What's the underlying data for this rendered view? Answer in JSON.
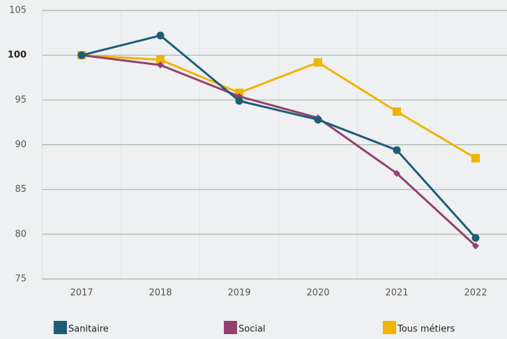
{
  "chart_data": {
    "type": "line",
    "categories": [
      "2017",
      "2018",
      "2019",
      "2020",
      "2021",
      "2022"
    ],
    "series": [
      {
        "name": "Sanitaire",
        "color": "#1e5d78",
        "marker": "circle",
        "values": [
          100,
          102.2,
          94.9,
          92.8,
          89.4,
          79.6
        ]
      },
      {
        "name": "Social",
        "color": "#94406e",
        "marker": "diamond",
        "values": [
          100,
          98.9,
          95.4,
          93.0,
          86.8,
          78.7
        ]
      },
      {
        "name": "Tous métiers",
        "color": "#f0b400",
        "marker": "square",
        "values": [
          100,
          99.5,
          95.8,
          99.2,
          93.7,
          88.5
        ]
      }
    ],
    "ylim": [
      75,
      105
    ],
    "yticks": [
      75,
      80,
      85,
      90,
      95,
      100,
      105
    ],
    "bold_ytick": 100,
    "grid": true
  }
}
